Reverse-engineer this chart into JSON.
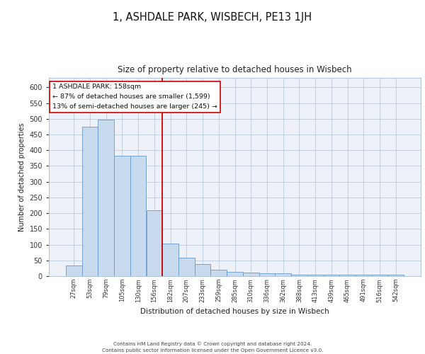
{
  "title": "1, ASHDALE PARK, WISBECH, PE13 1JH",
  "subtitle": "Size of property relative to detached houses in Wisbech",
  "xlabel": "Distribution of detached houses by size in Wisbech",
  "ylabel": "Number of detached properties",
  "bar_color": "#c8daed",
  "bar_edge_color": "#6699cc",
  "categories": [
    "27sqm",
    "53sqm",
    "79sqm",
    "105sqm",
    "130sqm",
    "156sqm",
    "182sqm",
    "207sqm",
    "233sqm",
    "259sqm",
    "285sqm",
    "310sqm",
    "336sqm",
    "362sqm",
    "388sqm",
    "413sqm",
    "439sqm",
    "465sqm",
    "491sqm",
    "516sqm",
    "542sqm"
  ],
  "values": [
    33,
    475,
    497,
    383,
    383,
    210,
    103,
    59,
    39,
    20,
    13,
    11,
    9,
    9,
    5,
    5,
    5,
    5,
    5,
    5,
    5
  ],
  "vline_x": 5.5,
  "vline_color": "#cc0000",
  "annotation_text": "1 ASHDALE PARK: 158sqm\n← 87% of detached houses are smaller (1,599)\n13% of semi-detached houses are larger (245) →",
  "annotation_box_color": "#ffffff",
  "annotation_box_edge": "#cc0000",
  "ylim": [
    0,
    630
  ],
  "yticks": [
    0,
    50,
    100,
    150,
    200,
    250,
    300,
    350,
    400,
    450,
    500,
    550,
    600
  ],
  "background_color": "#eef2f8",
  "footer_line1": "Contains HM Land Registry data © Crown copyright and database right 2024.",
  "footer_line2": "Contains public sector information licensed under the Open Government Licence v3.0."
}
